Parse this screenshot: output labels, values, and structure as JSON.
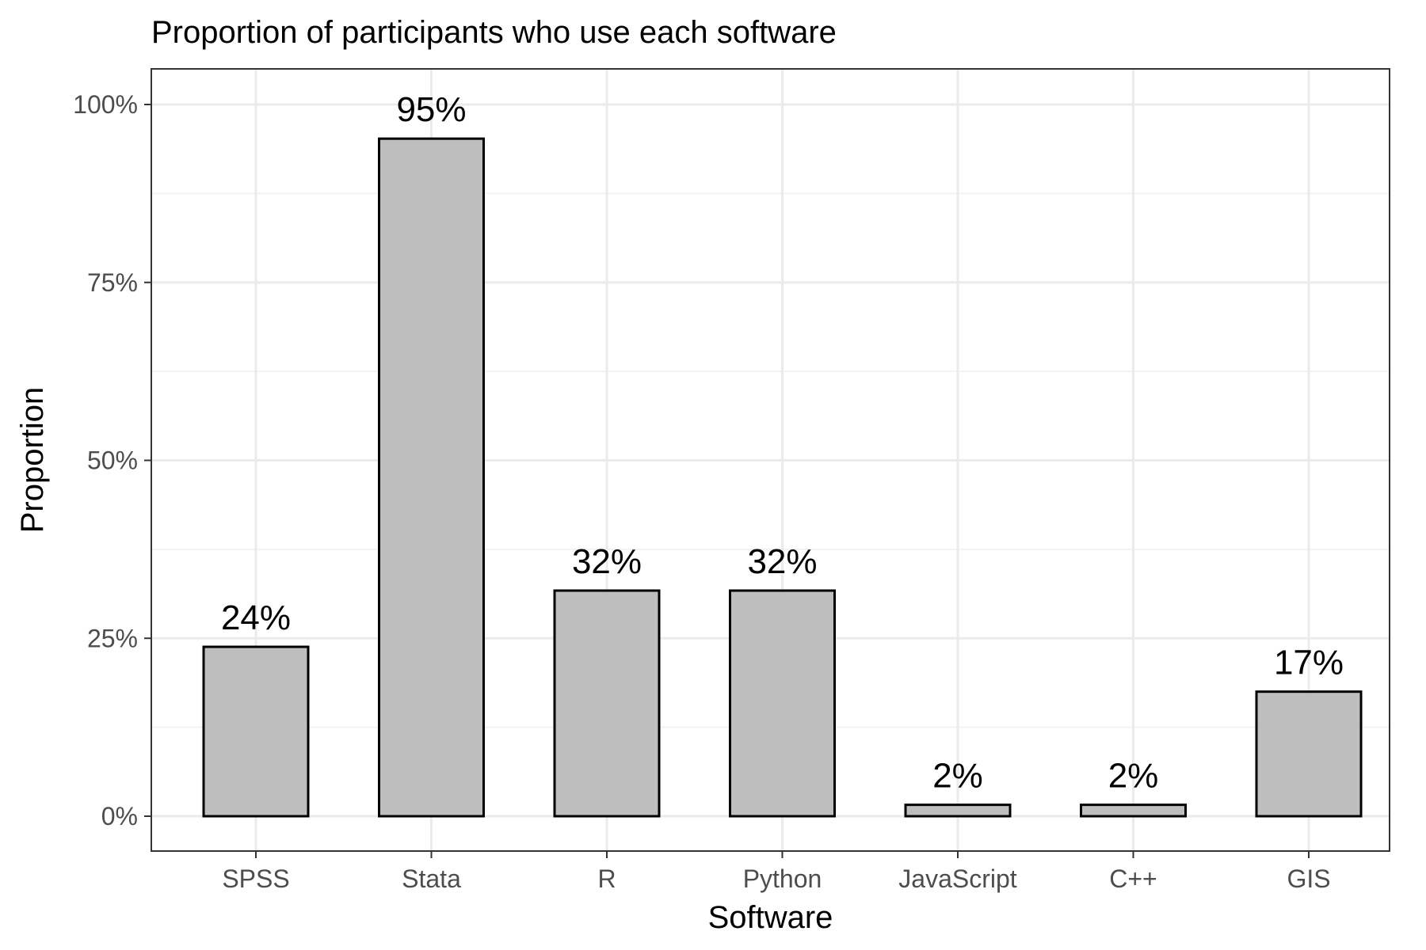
{
  "chart_data": {
    "type": "bar",
    "title": "Proportion of participants who use each software",
    "xlabel": "Software",
    "ylabel": "Proportion",
    "categories": [
      "SPSS",
      "Stata",
      "R",
      "Python",
      "JavaScript",
      "C++",
      "GIS"
    ],
    "values": [
      0.238,
      0.952,
      0.317,
      0.317,
      0.016,
      0.016,
      0.175
    ],
    "data_labels": [
      "24%",
      "95%",
      "32%",
      "32%",
      "2%",
      "2%",
      "17%"
    ],
    "ylim": [
      0,
      1
    ],
    "yticks": [
      0,
      0.25,
      0.5,
      0.75,
      1
    ],
    "ytick_labels": [
      "0%",
      "25%",
      "50%",
      "75%",
      "100%"
    ],
    "grid": true,
    "legend": "none",
    "colors": {
      "bar_fill": "#bebebe",
      "bar_stroke": "#000000",
      "grid_major": "#ebebeb",
      "grid_minor": "#f3f3f3",
      "panel_border": "#333333",
      "tick_text": "#4d4d4d"
    }
  }
}
